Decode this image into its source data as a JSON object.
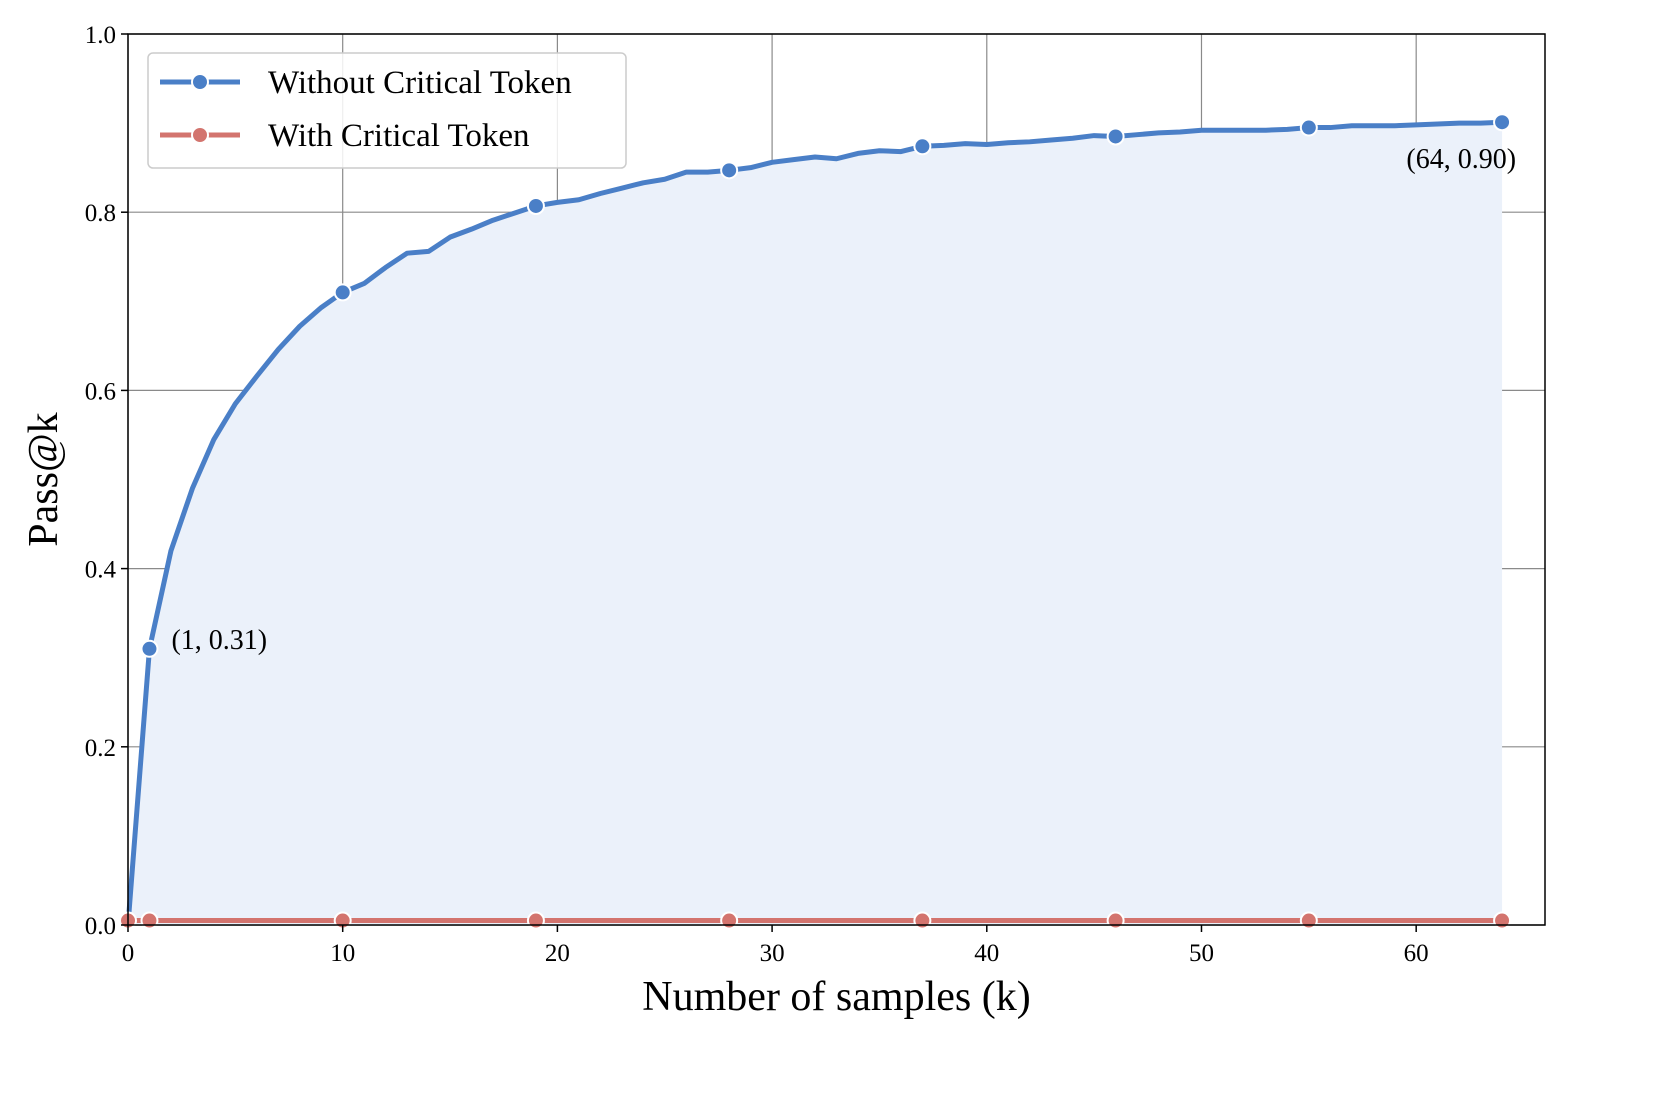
{
  "chart_data": {
    "type": "line",
    "title": "",
    "xlabel": "Number of samples (k)",
    "ylabel": "Pass@k",
    "xlim": [
      0,
      66
    ],
    "ylim": [
      0.0,
      1.0
    ],
    "xticks": [
      0,
      10,
      20,
      30,
      40,
      50,
      60
    ],
    "yticks": [
      0.0,
      0.2,
      0.4,
      0.6,
      0.8,
      1.0
    ],
    "xtick_labels": [
      "0",
      "10",
      "20",
      "30",
      "40",
      "50",
      "60"
    ],
    "ytick_labels": [
      "0.0",
      "0.2",
      "0.4",
      "0.6",
      "0.8",
      "1.0"
    ],
    "grid": true,
    "legend_position": "top-left",
    "series": [
      {
        "name": "Without Critical Token",
        "color": "#4a7fc7",
        "fill_color": "#ebf1fa",
        "x": [
          0,
          1,
          2,
          3,
          4,
          5,
          6,
          7,
          8,
          9,
          10,
          11,
          12,
          13,
          14,
          15,
          16,
          17,
          18,
          19,
          20,
          21,
          22,
          23,
          24,
          25,
          26,
          27,
          28,
          29,
          30,
          31,
          32,
          33,
          34,
          35,
          36,
          37,
          38,
          39,
          40,
          41,
          42,
          43,
          44,
          45,
          46,
          47,
          48,
          49,
          50,
          51,
          52,
          53,
          54,
          55,
          56,
          57,
          58,
          59,
          60,
          61,
          62,
          63,
          64
        ],
        "y": [
          0.0,
          0.31,
          0.42,
          0.49,
          0.545,
          0.585,
          0.616,
          0.646,
          0.672,
          0.693,
          0.71,
          0.72,
          0.738,
          0.754,
          0.756,
          0.772,
          0.781,
          0.791,
          0.799,
          0.807,
          0.811,
          0.814,
          0.821,
          0.827,
          0.833,
          0.837,
          0.845,
          0.845,
          0.847,
          0.85,
          0.856,
          0.859,
          0.862,
          0.86,
          0.866,
          0.869,
          0.868,
          0.874,
          0.875,
          0.877,
          0.876,
          0.878,
          0.879,
          0.881,
          0.883,
          0.886,
          0.885,
          0.887,
          0.889,
          0.89,
          0.892,
          0.892,
          0.892,
          0.892,
          0.893,
          0.895,
          0.895,
          0.897,
          0.897,
          0.897,
          0.898,
          0.899,
          0.9,
          0.9,
          0.901
        ],
        "marker_x": [
          1,
          10,
          19,
          28,
          37,
          46,
          55,
          64
        ]
      },
      {
        "name": "With Critical Token",
        "color": "#d3746e",
        "x": [
          0,
          1,
          10,
          19,
          28,
          37,
          46,
          55,
          64
        ],
        "y": [
          0.005,
          0.005,
          0.005,
          0.005,
          0.005,
          0.005,
          0.005,
          0.005,
          0.005
        ],
        "marker_x": [
          0,
          1,
          10,
          19,
          28,
          37,
          46,
          55,
          64
        ]
      }
    ],
    "annotations": [
      {
        "text": "(1, 0.31)",
        "x": 1,
        "y": 0.31
      },
      {
        "text": "(64, 0.90)",
        "x": 64,
        "y": 0.901
      }
    ]
  }
}
